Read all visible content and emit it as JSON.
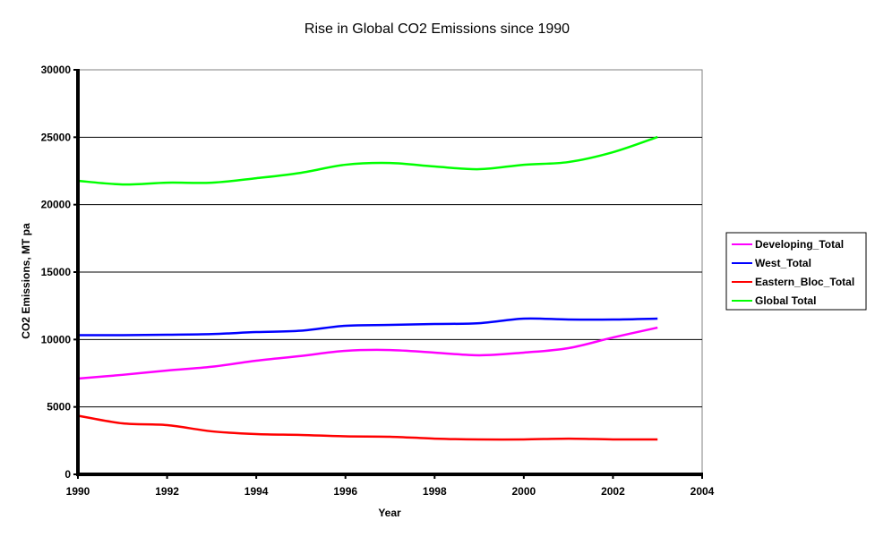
{
  "chart_data": {
    "type": "line",
    "title": "Rise in Global CO2 Emissions since 1990",
    "xlabel": "Year",
    "ylabel": "CO2 Emissions, MT pa",
    "xlim": [
      1990,
      2004
    ],
    "ylim": [
      0,
      30000
    ],
    "x_ticks": [
      "1990",
      "1992",
      "1994",
      "1996",
      "1998",
      "2000",
      "2002",
      "2004"
    ],
    "y_ticks": [
      "0",
      "5000",
      "10000",
      "15000",
      "20000",
      "25000",
      "30000"
    ],
    "grid": true,
    "legend_position": "right",
    "x": [
      1990,
      1991,
      1992,
      1993,
      1994,
      1995,
      1996,
      1997,
      1998,
      1999,
      2000,
      2001,
      2002,
      2003
    ],
    "series": [
      {
        "name": "Developing_Total",
        "color": "#ff00ff",
        "values": [
          7100,
          7380,
          7700,
          7980,
          8430,
          8780,
          9160,
          9220,
          9030,
          8830,
          9030,
          9360,
          10150,
          10880
        ]
      },
      {
        "name": "West_Total",
        "color": "#0000ff",
        "values": [
          10320,
          10320,
          10350,
          10400,
          10550,
          10650,
          11020,
          11080,
          11150,
          11210,
          11550,
          11480,
          11480,
          11550
        ]
      },
      {
        "name": "Eastern_Bloc_Total",
        "color": "#ff0000",
        "values": [
          4350,
          3780,
          3650,
          3190,
          2990,
          2920,
          2820,
          2790,
          2650,
          2590,
          2590,
          2650,
          2590,
          2590
        ]
      },
      {
        "name": "Global Total",
        "color": "#00ff00",
        "values": [
          21770,
          21500,
          21630,
          21630,
          21960,
          22360,
          22960,
          23090,
          22830,
          22630,
          22960,
          23160,
          23890,
          25020
        ]
      }
    ]
  }
}
